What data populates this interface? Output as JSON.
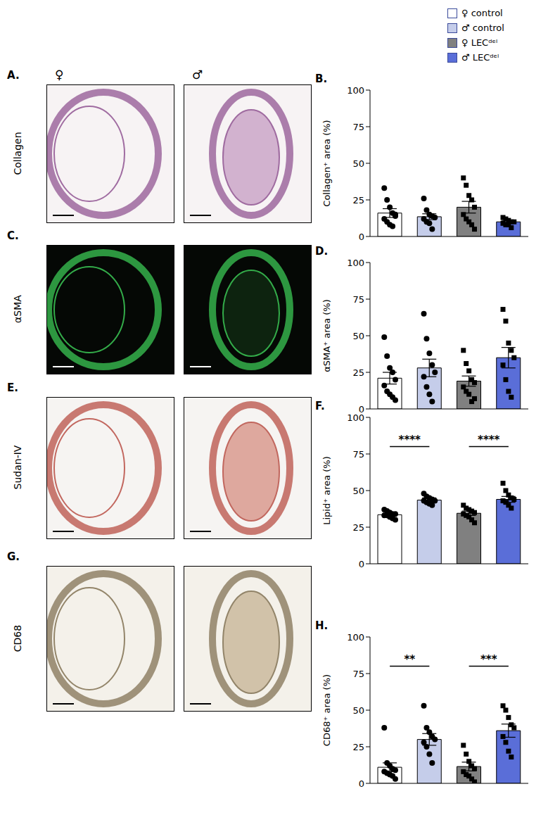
{
  "legend_items": [
    {
      "name": "♀ control",
      "color": "#ffffff",
      "marker": "circle"
    },
    {
      "name": "♂ control",
      "color": "#c5cdea",
      "marker": "circle"
    },
    {
      "name": "♀ LECᵈᵉˡ",
      "color": "#808080",
      "marker": "square"
    },
    {
      "name": "♂ LECᵈᵉˡ",
      "color": "#5a6ed8",
      "marker": "square"
    }
  ],
  "image_columns": [
    "♀",
    "♂"
  ],
  "images": [
    {
      "letter": "A.",
      "stain": "Collagen"
    },
    {
      "letter": "C.",
      "stain": "αSMA"
    },
    {
      "letter": "E.",
      "stain": "Sudan-IV"
    },
    {
      "letter": "G.",
      "stain": "CD68"
    }
  ],
  "chart_data": [
    {
      "type": "bar",
      "title": "B.",
      "y_label": "Collagen⁺ area (%)",
      "categories": [
        null,
        null,
        null,
        null
      ],
      "values": [
        16,
        13.5,
        20,
        10
      ],
      "errors": [
        3,
        2,
        4,
        1
      ],
      "colors": [
        "#ffffff",
        "#c5cdea",
        "#808080",
        "#5a6ed8"
      ],
      "points": [
        [
          33,
          25,
          20,
          16,
          14,
          12,
          10,
          8,
          7,
          15
        ],
        [
          26,
          18,
          15,
          14,
          13,
          12,
          10,
          9,
          5
        ],
        [
          40,
          35,
          28,
          25,
          20,
          15,
          12,
          10,
          8,
          5
        ],
        [
          13,
          12,
          11,
          10,
          10,
          9,
          8,
          8,
          6
        ]
      ],
      "ylim": [
        0,
        100
      ],
      "yticks": [
        0,
        25,
        50,
        75,
        100
      ],
      "annotations": []
    },
    {
      "type": "bar",
      "title": "D.",
      "y_label": "αSMA⁺ area (%)",
      "categories": [
        null,
        null,
        null,
        null
      ],
      "values": [
        21,
        28,
        19,
        35
      ],
      "errors": [
        4,
        6,
        3.5,
        7
      ],
      "colors": [
        "#ffffff",
        "#c5cdea",
        "#808080",
        "#5a6ed8"
      ],
      "points": [
        [
          49,
          36,
          28,
          25,
          20,
          16,
          12,
          10,
          8,
          6
        ],
        [
          65,
          48,
          38,
          30,
          25,
          22,
          15,
          10,
          5
        ],
        [
          40,
          31,
          26,
          20,
          18,
          15,
          12,
          10,
          5,
          7
        ],
        [
          68,
          60,
          45,
          40,
          35,
          30,
          20,
          12,
          8
        ]
      ],
      "ylim": [
        0,
        100
      ],
      "yticks": [
        0,
        25,
        50,
        75,
        100
      ],
      "annotations": []
    },
    {
      "type": "bar",
      "title": "F.",
      "y_label": "Lipid⁺ area (%)",
      "categories": [
        null,
        null,
        null,
        null
      ],
      "values": [
        33.5,
        43.5,
        34.5,
        44
      ],
      "errors": [
        1,
        1.5,
        1.5,
        2
      ],
      "colors": [
        "#ffffff",
        "#c5cdea",
        "#808080",
        "#5a6ed8"
      ],
      "points": [
        [
          37,
          36,
          35,
          34,
          34,
          33,
          33,
          32,
          31,
          30
        ],
        [
          48,
          46,
          45,
          44,
          43,
          43,
          42,
          41,
          40
        ],
        [
          40,
          38,
          37,
          36,
          35,
          34,
          33,
          32,
          30,
          28
        ],
        [
          55,
          50,
          47,
          45,
          44,
          43,
          42,
          40,
          38
        ]
      ],
      "ylim": [
        0,
        100
      ],
      "yticks": [
        0,
        25,
        50,
        75,
        100
      ],
      "annotations": [
        {
          "from": 0,
          "to": 1,
          "text": "****"
        },
        {
          "from": 2,
          "to": 3,
          "text": "****"
        }
      ]
    },
    {
      "type": "bar",
      "title": "H.",
      "y_label": "CD68⁺ area (%)",
      "categories": [
        null,
        null,
        null,
        null
      ],
      "values": [
        11,
        30,
        11.5,
        36
      ],
      "errors": [
        3,
        4,
        3,
        4.5
      ],
      "colors": [
        "#ffffff",
        "#c5cdea",
        "#808080",
        "#5a6ed8"
      ],
      "points": [
        [
          38,
          14,
          12,
          10,
          9,
          8,
          7,
          6,
          5,
          3
        ],
        [
          53,
          38,
          35,
          32,
          30,
          28,
          25,
          20,
          14
        ],
        [
          26,
          20,
          15,
          12,
          10,
          8,
          6,
          5,
          3,
          1
        ],
        [
          53,
          50,
          45,
          40,
          38,
          32,
          28,
          22,
          18
        ]
      ],
      "ylim": [
        0,
        100
      ],
      "yticks": [
        0,
        25,
        50,
        75,
        100
      ],
      "annotations": [
        {
          "from": 0,
          "to": 1,
          "text": "**"
        },
        {
          "from": 2,
          "to": 3,
          "text": "***"
        }
      ]
    }
  ]
}
